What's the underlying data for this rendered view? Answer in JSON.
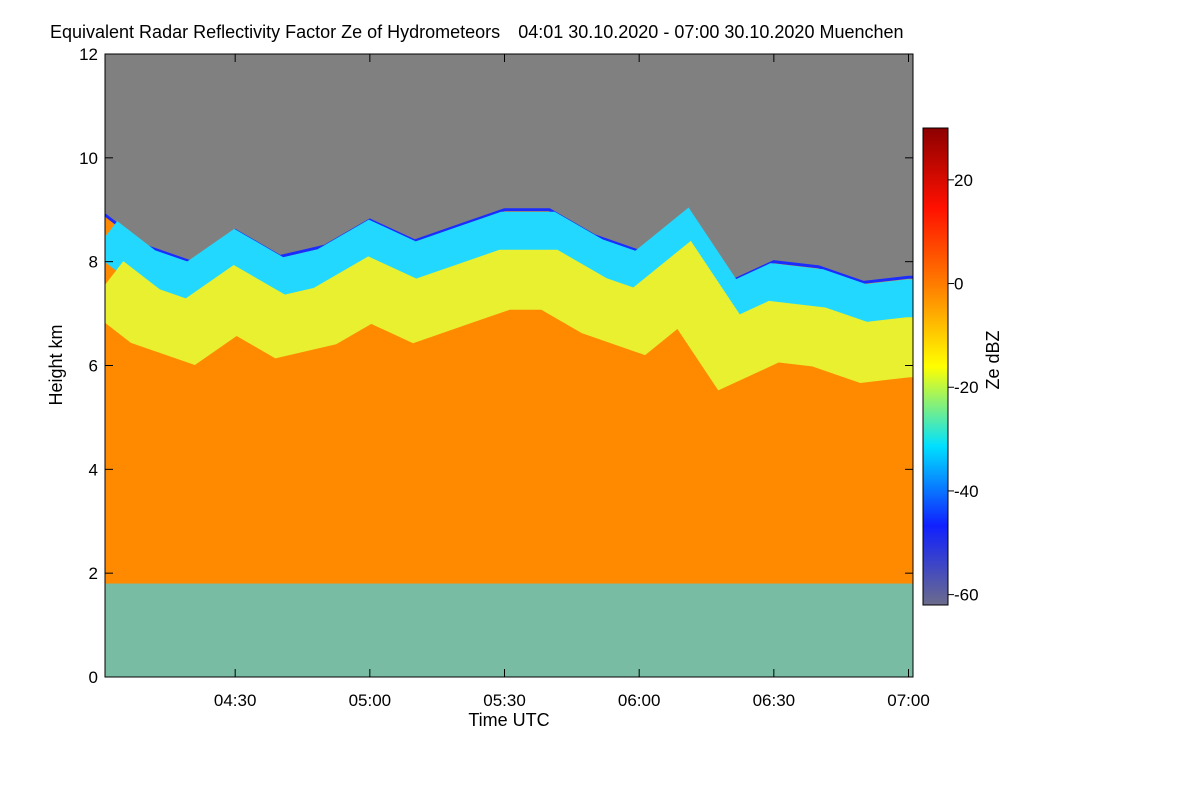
{
  "chart_data": {
    "type": "heatmap",
    "title": "Equivalent Radar Reflectivity Factor Ze of Hydrometeors",
    "subtitle": "04:01 30.10.2020 - 07:00 30.10.2020 Muenchen",
    "xlabel": "Time UTC",
    "ylabel": "Height km",
    "xlim": [
      "04:01",
      "07:01"
    ],
    "ylim": [
      0,
      12
    ],
    "x_ticks": [
      "04:30",
      "05:00",
      "05:30",
      "06:00",
      "06:30",
      "07:00"
    ],
    "y_ticks": [
      "0",
      "2",
      "4",
      "6",
      "8",
      "10",
      "12"
    ],
    "colorbar": {
      "label": "Ze dBZ",
      "range": [
        -62,
        30
      ],
      "ticks": [
        "20",
        "0",
        "-20",
        "-40",
        "-60"
      ],
      "colors": [
        "#6c6c8c",
        "#1020ff",
        "#00e0ff",
        "#ffff00",
        "#ff8000",
        "#ff1000",
        "#8c0000"
      ]
    },
    "background_color": "#808080",
    "echo_top_km": [
      {
        "time": "04:01",
        "height": 8.9
      },
      {
        "time": "04:10",
        "height": 8.3
      },
      {
        "time": "04:20",
        "height": 8.0
      },
      {
        "time": "04:30",
        "height": 8.6
      },
      {
        "time": "04:40",
        "height": 8.1
      },
      {
        "time": "04:50",
        "height": 8.3
      },
      {
        "time": "05:00",
        "height": 8.8
      },
      {
        "time": "05:10",
        "height": 8.4
      },
      {
        "time": "05:20",
        "height": 8.7
      },
      {
        "time": "05:30",
        "height": 9.0
      },
      {
        "time": "05:40",
        "height": 9.0
      },
      {
        "time": "05:50",
        "height": 8.5
      },
      {
        "time": "06:00",
        "height": 8.2
      },
      {
        "time": "06:10",
        "height": 8.9
      },
      {
        "time": "06:20",
        "height": 7.6
      },
      {
        "time": "06:30",
        "height": 8.0
      },
      {
        "time": "06:40",
        "height": 7.9
      },
      {
        "time": "06:50",
        "height": 7.6
      },
      {
        "time": "07:00",
        "height": 7.7
      }
    ]
  }
}
